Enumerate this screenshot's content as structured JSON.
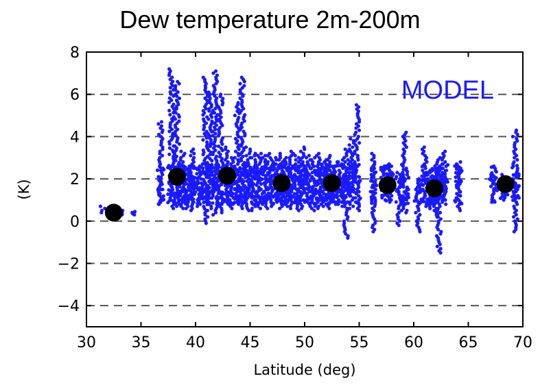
{
  "chart_data": {
    "type": "scatter",
    "title": "Dew temperature 2m-200m",
    "xlabel": "Latitude (deg)",
    "ylabel": "(K)",
    "xlim": [
      30,
      70
    ],
    "ylim": [
      -5,
      8
    ],
    "xticks": [
      30,
      35,
      40,
      45,
      50,
      55,
      60,
      65,
      70
    ],
    "yticks": [
      -4,
      -2,
      0,
      2,
      4,
      6,
      8
    ],
    "ytick_labels": [
      "−4",
      "−2",
      "0",
      "2",
      "4",
      "6",
      "8"
    ],
    "grid": "horizontal dashed",
    "annotation": "MODEL",
    "colors": {
      "scatter": "#1a1aff",
      "means": "#000000",
      "annotation": "#1a1aff",
      "grid": "#555555"
    },
    "series": [
      {
        "role": "station values",
        "marker": "small blue dots",
        "columns": [
          {
            "x": 31.5,
            "ymin": 0.4,
            "ymax": 0.7
          },
          {
            "x": 32.2,
            "ymin": 0.3,
            "ymax": 0.6
          },
          {
            "x": 33.2,
            "ymin": 0.3,
            "ymax": 0.5
          },
          {
            "x": 34.3,
            "ymin": 0.3,
            "ymax": 0.45
          },
          {
            "x": 36.8,
            "ymin": 0.8,
            "ymax": 4.7
          },
          {
            "x": 37.8,
            "ymin": 0.6,
            "ymax": 7.2
          },
          {
            "x": 38.3,
            "ymin": 0.7,
            "ymax": 6.6
          },
          {
            "x": 38.8,
            "ymin": 0.6,
            "ymax": 3.3
          },
          {
            "x": 39.3,
            "ymin": 0.6,
            "ymax": 2.6
          },
          {
            "x": 39.7,
            "ymin": 0.5,
            "ymax": 3.4
          },
          {
            "x": 40.3,
            "ymin": 0.7,
            "ymax": 2.6
          },
          {
            "x": 40.9,
            "ymin": -0.1,
            "ymax": 6.8
          },
          {
            "x": 41.3,
            "ymin": 0.5,
            "ymax": 6.1
          },
          {
            "x": 41.8,
            "ymin": 0.3,
            "ymax": 7.1
          },
          {
            "x": 42.3,
            "ymin": 0.4,
            "ymax": 6.0
          },
          {
            "x": 42.8,
            "ymin": 0.8,
            "ymax": 3.5
          },
          {
            "x": 43.3,
            "ymin": 0.6,
            "ymax": 3.0
          },
          {
            "x": 43.8,
            "ymin": 0.8,
            "ymax": 5.6
          },
          {
            "x": 44.3,
            "ymin": 0.6,
            "ymax": 6.8
          },
          {
            "x": 44.8,
            "ymin": 0.5,
            "ymax": 3.5
          },
          {
            "x": 45.3,
            "ymin": 0.5,
            "ymax": 3.2
          },
          {
            "x": 45.8,
            "ymin": 0.6,
            "ymax": 3.2
          },
          {
            "x": 46.3,
            "ymin": 0.7,
            "ymax": 3.1
          },
          {
            "x": 46.8,
            "ymin": 0.6,
            "ymax": 3.2
          },
          {
            "x": 47.3,
            "ymin": 0.8,
            "ymax": 3.0
          },
          {
            "x": 47.8,
            "ymin": 0.6,
            "ymax": 3.2
          },
          {
            "x": 48.3,
            "ymin": 0.7,
            "ymax": 3.0
          },
          {
            "x": 48.8,
            "ymin": 0.6,
            "ymax": 3.3
          },
          {
            "x": 49.3,
            "ymin": 0.5,
            "ymax": 3.1
          },
          {
            "x": 49.8,
            "ymin": 0.6,
            "ymax": 3.5
          },
          {
            "x": 50.3,
            "ymin": 0.7,
            "ymax": 3.1
          },
          {
            "x": 50.8,
            "ymin": 0.5,
            "ymax": 3.0
          },
          {
            "x": 51.3,
            "ymin": 0.6,
            "ymax": 3.2
          },
          {
            "x": 51.8,
            "ymin": 0.7,
            "ymax": 2.9
          },
          {
            "x": 52.3,
            "ymin": 0.6,
            "ymax": 3.1
          },
          {
            "x": 52.8,
            "ymin": 0.8,
            "ymax": 2.8
          },
          {
            "x": 53.3,
            "ymin": 0.7,
            "ymax": 2.9
          },
          {
            "x": 53.8,
            "ymin": -0.8,
            "ymax": 3.4
          },
          {
            "x": 54.3,
            "ymin": 0.6,
            "ymax": 3.9
          },
          {
            "x": 54.8,
            "ymin": 0.5,
            "ymax": 5.5
          },
          {
            "x": 56.3,
            "ymin": -0.5,
            "ymax": 3.2
          },
          {
            "x": 57.3,
            "ymin": 1.0,
            "ymax": 2.6
          },
          {
            "x": 57.8,
            "ymin": 0.9,
            "ymax": 2.7
          },
          {
            "x": 58.7,
            "ymin": -0.2,
            "ymax": 2.3
          },
          {
            "x": 59.2,
            "ymin": 0.4,
            "ymax": 4.2
          },
          {
            "x": 60.4,
            "ymin": -0.5,
            "ymax": 2.0
          },
          {
            "x": 61.0,
            "ymin": 0.7,
            "ymax": 3.5
          },
          {
            "x": 61.5,
            "ymin": 0.6,
            "ymax": 2.4
          },
          {
            "x": 62.0,
            "ymin": 0.2,
            "ymax": 2.6
          },
          {
            "x": 62.3,
            "ymin": -1.5,
            "ymax": 3.0
          },
          {
            "x": 62.8,
            "ymin": 0.8,
            "ymax": 3.3
          },
          {
            "x": 64.1,
            "ymin": 0.5,
            "ymax": 2.8
          },
          {
            "x": 67.3,
            "ymin": 0.9,
            "ymax": 2.6
          },
          {
            "x": 68.3,
            "ymin": 1.0,
            "ymax": 2.2
          },
          {
            "x": 69.3,
            "ymin": -0.5,
            "ymax": 4.3
          }
        ]
      },
      {
        "role": "latitude-band means",
        "marker": "large black dots",
        "points": [
          {
            "x": 32.5,
            "y": 0.4
          },
          {
            "x": 38.3,
            "y": 2.1
          },
          {
            "x": 42.9,
            "y": 2.15
          },
          {
            "x": 47.9,
            "y": 1.8
          },
          {
            "x": 52.5,
            "y": 1.8
          },
          {
            "x": 57.6,
            "y": 1.7
          },
          {
            "x": 61.9,
            "y": 1.55
          },
          {
            "x": 68.4,
            "y": 1.75
          }
        ]
      }
    ]
  }
}
